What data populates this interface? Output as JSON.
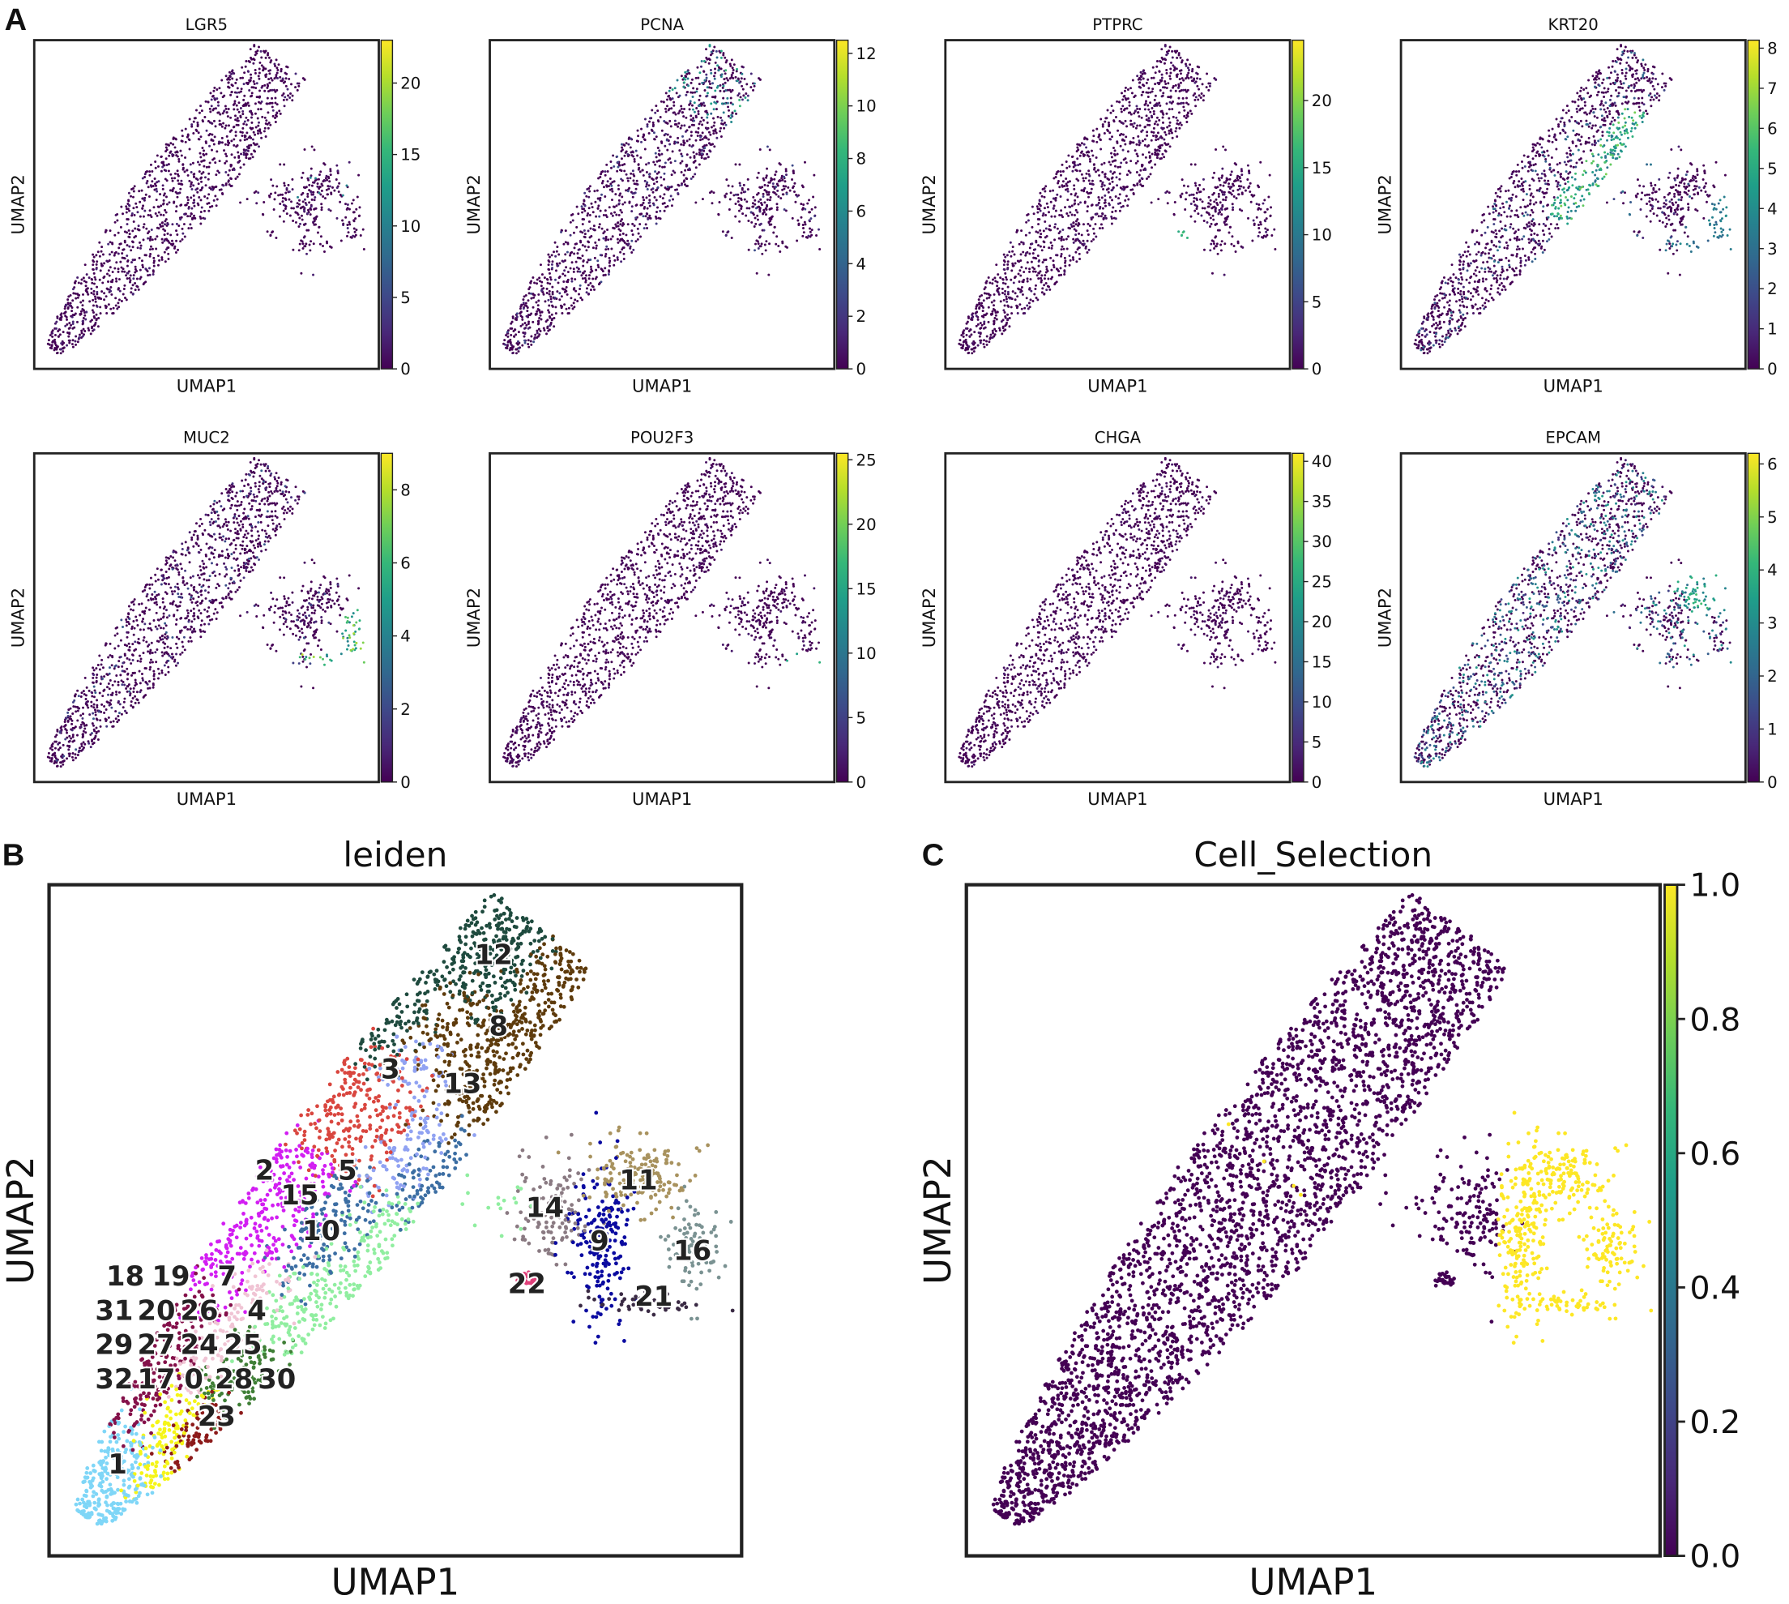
{
  "panel_labels": [
    "A",
    "B",
    "C"
  ],
  "colormap": {
    "name": "viridis",
    "colors": [
      "#440154",
      "#482878",
      "#3e4989",
      "#31688e",
      "#26828e",
      "#1f9e89",
      "#35b779",
      "#6ece58",
      "#b5de2b",
      "#fde725"
    ]
  },
  "chart_data": [
    {
      "type": "scatter",
      "panel": "A",
      "title": "LGR5",
      "xlabel": "UMAP1",
      "ylabel": "UMAP2",
      "colorbar": {
        "min": 0,
        "max": 23,
        "ticks": [
          "0",
          "5",
          "10",
          "15",
          "20"
        ]
      }
    },
    {
      "type": "scatter",
      "panel": "A",
      "title": "PCNA",
      "xlabel": "UMAP1",
      "ylabel": "UMAP2",
      "colorbar": {
        "min": 0,
        "max": 12.5,
        "ticks": [
          "0",
          "2",
          "4",
          "6",
          "8",
          "10",
          "12"
        ]
      }
    },
    {
      "type": "scatter",
      "panel": "A",
      "title": "PTPRC",
      "xlabel": "UMAP1",
      "ylabel": "UMAP2",
      "colorbar": {
        "min": 0,
        "max": 24.5,
        "ticks": [
          "0",
          "5",
          "10",
          "15",
          "20"
        ]
      }
    },
    {
      "type": "scatter",
      "panel": "A",
      "title": "KRT20",
      "xlabel": "UMAP1",
      "ylabel": "UMAP2",
      "colorbar": {
        "min": 0,
        "max": 8.2,
        "ticks": [
          "0",
          "1",
          "2",
          "3",
          "4",
          "5",
          "6",
          "7",
          "8"
        ]
      }
    },
    {
      "type": "scatter",
      "panel": "A",
      "title": "MUC2",
      "xlabel": "UMAP1",
      "ylabel": "UMAP2",
      "colorbar": {
        "min": 0,
        "max": 9,
        "ticks": [
          "0",
          "2",
          "4",
          "6",
          "8"
        ]
      }
    },
    {
      "type": "scatter",
      "panel": "A",
      "title": "POU2F3",
      "xlabel": "UMAP1",
      "ylabel": "UMAP2",
      "colorbar": {
        "min": 0,
        "max": 25.5,
        "ticks": [
          "0",
          "5",
          "10",
          "15",
          "20",
          "25"
        ]
      }
    },
    {
      "type": "scatter",
      "panel": "A",
      "title": "CHGA",
      "xlabel": "UMAP1",
      "ylabel": "UMAP2",
      "colorbar": {
        "min": 0,
        "max": 41,
        "ticks": [
          "0",
          "5",
          "10",
          "15",
          "20",
          "25",
          "30",
          "35",
          "40"
        ]
      }
    },
    {
      "type": "scatter",
      "panel": "A",
      "title": "EPCAM",
      "xlabel": "UMAP1",
      "ylabel": "UMAP2",
      "colorbar": {
        "min": 0,
        "max": 6.2,
        "ticks": [
          "0",
          "1",
          "2",
          "3",
          "4",
          "5",
          "6"
        ]
      }
    },
    {
      "type": "scatter",
      "panel": "B",
      "title": "leiden",
      "xlabel": "UMAP1",
      "ylabel": "UMAP2",
      "cluster_labels": [
        "12",
        "8",
        "3",
        "13",
        "2",
        "5",
        "15",
        "10",
        "14",
        "11",
        "9",
        "16",
        "22",
        "21",
        "7",
        "18",
        "19",
        "26",
        "4",
        "31",
        "20",
        "27",
        "29",
        "24",
        "25",
        "32",
        "17",
        "0",
        "28",
        "30",
        "23",
        "1"
      ],
      "cluster_colors": {
        "0": "#f5f518",
        "1": "#7fd6f7",
        "2": "#d21ef2",
        "3": "#d9463f",
        "4": "#3f7f36",
        "5": "#3c6ea3",
        "7": "#f0c4d4",
        "8": "#5e3b0c",
        "9": "#0a0aa0",
        "10": "#90eea0",
        "11": "#a8925e",
        "12": "#1e4a3e",
        "13": "#90a2f2",
        "14": "#8a7a82",
        "16": "#7a9292",
        "19": "#84114a",
        "21": "#3a2a44",
        "22": "#e0407a",
        "23": "#8c1a1a"
      }
    },
    {
      "type": "scatter",
      "panel": "C",
      "title": "Cell_Selection",
      "xlabel": "UMAP1",
      "ylabel": "UMAP2",
      "colorbar": {
        "min": 0,
        "max": 1,
        "ticks": [
          "0.0",
          "0.2",
          "0.4",
          "0.6",
          "0.8",
          "1.0"
        ]
      }
    }
  ]
}
